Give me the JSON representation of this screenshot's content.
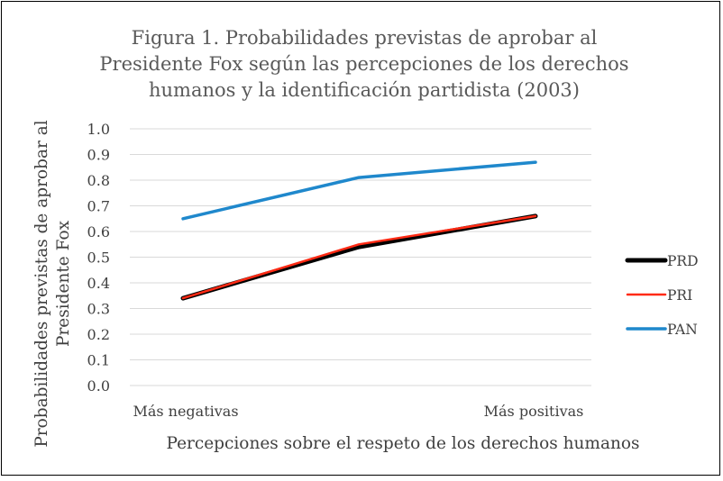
{
  "chart_data": {
    "type": "line",
    "title": "Figura 1. Probabilidades previstas de aprobar al Presidente Fox según las percepciones de los derechos humanos y la identificación partidista (2003)",
    "title_lines": [
      "Figura 1. Probabilidades previstas de aprobar al",
      "Presidente Fox según las percepciones de los derechos",
      "humanos y la identificación partidista (2003)"
    ],
    "xlabel": "Percepciones sobre el respeto de los derechos humanos",
    "ylabel": "Probabilidades previstas de aprobar al Presidente Fox",
    "ylabel_lines": [
      "Probabilidades previstas de aprobar al",
      "Presidente Fox"
    ],
    "x": [
      0,
      1,
      2
    ],
    "x_tick_labels": [
      "Más negativas",
      "Más positivas"
    ],
    "y_ticks": [
      "0.0",
      "0.1",
      "0.2",
      "0.3",
      "0.4",
      "0.5",
      "0.6",
      "0.7",
      "0.8",
      "0.9",
      "1.0"
    ],
    "ylim": [
      0,
      1
    ],
    "grid": true,
    "legend_position": "right",
    "series": [
      {
        "name": "PRD",
        "color": "#000000",
        "values": [
          0.34,
          0.54,
          0.66
        ]
      },
      {
        "name": "PRI",
        "color": "#ff2a14",
        "values": [
          0.34,
          0.55,
          0.66
        ]
      },
      {
        "name": "PAN",
        "color": "#1f88cc",
        "values": [
          0.65,
          0.81,
          0.87
        ]
      }
    ]
  }
}
